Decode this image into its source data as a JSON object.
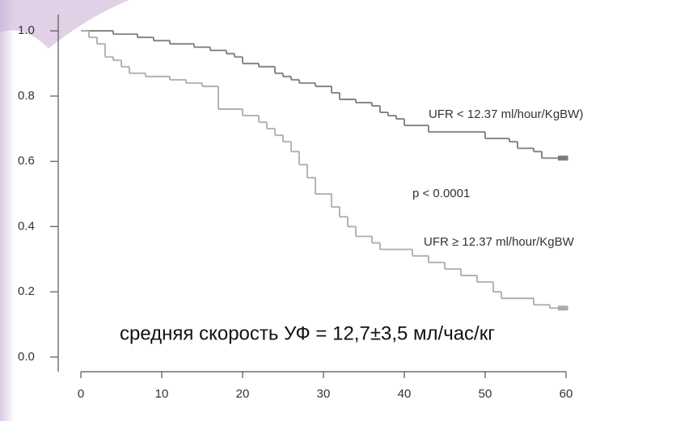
{
  "chart_data": {
    "type": "line",
    "drawstyle": "steps-post",
    "series": [
      {
        "name": "UFR < 12.37 ml/hour/KgBW)",
        "color": "#7a7a7a",
        "x": [
          0,
          4,
          7,
          9,
          11,
          14,
          16,
          18,
          19,
          20,
          22,
          24,
          25,
          26,
          27,
          29,
          31,
          32,
          34,
          36,
          37,
          38,
          39,
          40,
          43,
          50,
          53,
          54,
          56,
          57,
          59
        ],
        "values": [
          1.0,
          0.99,
          0.98,
          0.97,
          0.96,
          0.95,
          0.94,
          0.93,
          0.92,
          0.9,
          0.89,
          0.87,
          0.86,
          0.85,
          0.84,
          0.83,
          0.81,
          0.79,
          0.78,
          0.77,
          0.75,
          0.74,
          0.73,
          0.71,
          0.69,
          0.67,
          0.66,
          0.64,
          0.63,
          0.61,
          0.61
        ]
      },
      {
        "name": "UFR ≥ 12.37 ml/hour/KgBW",
        "color": "#ababab",
        "x": [
          0,
          1,
          2,
          3,
          4,
          5,
          6,
          8,
          11,
          13,
          15,
          17,
          20,
          22,
          23,
          24,
          25,
          26,
          27,
          28,
          29,
          31,
          32,
          33,
          34,
          36,
          37,
          41,
          43,
          45,
          47,
          49,
          51,
          52,
          56,
          58,
          59
        ],
        "values": [
          1.0,
          0.98,
          0.96,
          0.92,
          0.91,
          0.89,
          0.87,
          0.86,
          0.85,
          0.84,
          0.83,
          0.76,
          0.74,
          0.72,
          0.7,
          0.68,
          0.66,
          0.63,
          0.59,
          0.55,
          0.5,
          0.46,
          0.43,
          0.4,
          0.37,
          0.35,
          0.33,
          0.31,
          0.29,
          0.27,
          0.25,
          0.23,
          0.2,
          0.18,
          0.16,
          0.15,
          0.15
        ]
      }
    ],
    "annotations": [
      "p < 0.0001",
      "средняя скорость УФ = 12,7±3,5 мл/час/кг"
    ],
    "xlim": [
      -2.8,
      60
    ],
    "ylim": [
      -0.045,
      1.05
    ],
    "xticks": [
      0,
      10,
      20,
      30,
      40,
      50,
      60
    ],
    "yticks": [
      {
        "value": 0,
        "label": "0.0"
      },
      0.2,
      0.4,
      0.6,
      0.8,
      {
        "value": 1,
        "label": "1.0"
      }
    ]
  }
}
